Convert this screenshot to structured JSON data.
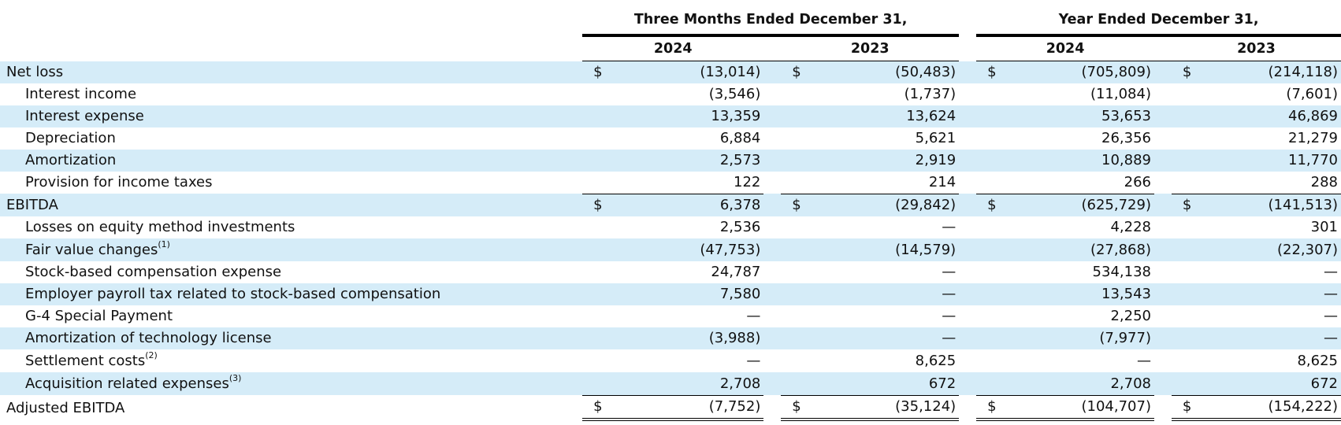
{
  "headers": {
    "group1": "Three Months Ended December 31,",
    "group2": "Year Ended December 31,",
    "years": [
      "2024",
      "2023",
      "2024",
      "2023"
    ]
  },
  "rows": [
    {
      "label": "Net loss",
      "sup": "",
      "cur": [
        "$",
        "$",
        "$",
        "$"
      ],
      "values": [
        "(13,014)",
        "(50,483)",
        "(705,809)",
        "(214,118)"
      ]
    },
    {
      "label": "Interest income",
      "sup": "",
      "cur": [
        "",
        "",
        "",
        ""
      ],
      "values": [
        "(3,546)",
        "(1,737)",
        "(11,084)",
        "(7,601)"
      ]
    },
    {
      "label": "Interest expense",
      "sup": "",
      "cur": [
        "",
        "",
        "",
        ""
      ],
      "values": [
        "13,359",
        "13,624",
        "53,653",
        "46,869"
      ]
    },
    {
      "label": "Depreciation",
      "sup": "",
      "cur": [
        "",
        "",
        "",
        ""
      ],
      "values": [
        "6,884",
        "5,621",
        "26,356",
        "21,279"
      ]
    },
    {
      "label": "Amortization",
      "sup": "",
      "cur": [
        "",
        "",
        "",
        ""
      ],
      "values": [
        "2,573",
        "2,919",
        "10,889",
        "11,770"
      ]
    },
    {
      "label": "Provision for income taxes",
      "sup": "",
      "cur": [
        "",
        "",
        "",
        ""
      ],
      "values": [
        "122",
        "214",
        "266",
        "288"
      ]
    },
    {
      "label": "EBITDA",
      "sup": "",
      "cur": [
        "$",
        "$",
        "$",
        "$"
      ],
      "values": [
        "6,378",
        "(29,842)",
        "(625,729)",
        "(141,513)"
      ]
    },
    {
      "label": "Losses on equity method investments",
      "sup": "",
      "cur": [
        "",
        "",
        "",
        ""
      ],
      "values": [
        "2,536",
        "—",
        "4,228",
        "301"
      ]
    },
    {
      "label": "Fair value changes",
      "sup": "(1)",
      "cur": [
        "",
        "",
        "",
        ""
      ],
      "values": [
        "(47,753)",
        "(14,579)",
        "(27,868)",
        "(22,307)"
      ]
    },
    {
      "label": "Stock-based compensation expense",
      "sup": "",
      "cur": [
        "",
        "",
        "",
        ""
      ],
      "values": [
        "24,787",
        "—",
        "534,138",
        "—"
      ]
    },
    {
      "label": "Employer payroll tax related to stock-based compensation",
      "sup": "",
      "cur": [
        "",
        "",
        "",
        ""
      ],
      "values": [
        "7,580",
        "—",
        "13,543",
        "—"
      ]
    },
    {
      "label": "G-4 Special Payment",
      "sup": "",
      "cur": [
        "",
        "",
        "",
        ""
      ],
      "values": [
        "—",
        "—",
        "2,250",
        "—"
      ]
    },
    {
      "label": "Amortization of technology license",
      "sup": "",
      "cur": [
        "",
        "",
        "",
        ""
      ],
      "values": [
        "(3,988)",
        "—",
        "(7,977)",
        "—"
      ]
    },
    {
      "label": "Settlement costs",
      "sup": "(2)",
      "cur": [
        "",
        "",
        "",
        ""
      ],
      "values": [
        "—",
        "8,625",
        "—",
        "8,625"
      ]
    },
    {
      "label": "Acquisition related expenses",
      "sup": "(3)",
      "cur": [
        "",
        "",
        "",
        ""
      ],
      "values": [
        "2,708",
        "672",
        "2,708",
        "672"
      ]
    },
    {
      "label": "Adjusted EBITDA",
      "sup": "",
      "cur": [
        "$",
        "$",
        "$",
        "$"
      ],
      "values": [
        "(7,752)",
        "(35,124)",
        "(104,707)",
        "(154,222)"
      ]
    }
  ],
  "colors": {
    "shade": "#d5ecf8",
    "rule": "#000000"
  }
}
